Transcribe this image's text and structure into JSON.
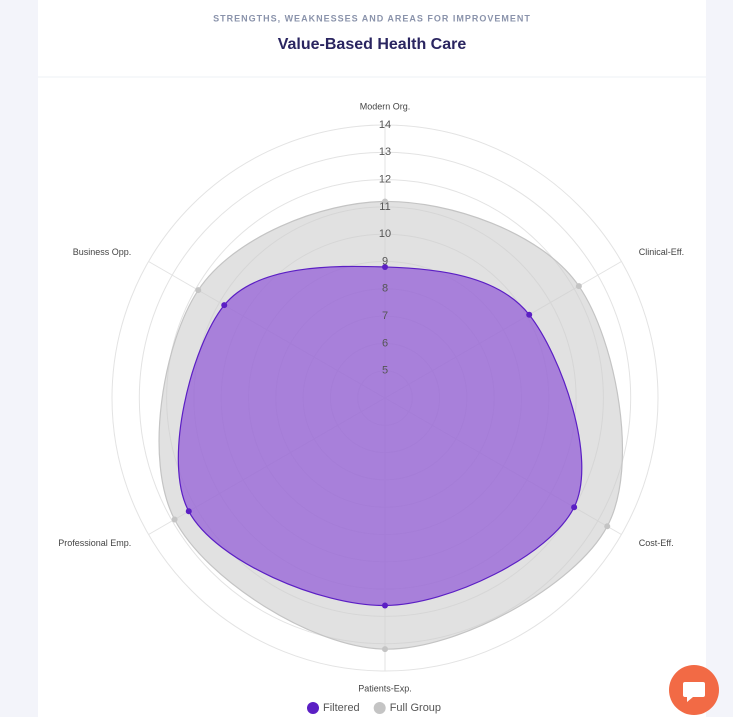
{
  "chart_data": {
    "type": "radar",
    "subtitle": "STRENGTHS, WEAKNESSES AND AREAS FOR IMPROVEMENT",
    "title": "Value-Based Health Care",
    "categories": [
      "Modern Org.",
      "Clinical-Eff.",
      "Cost-Eff.",
      "Patients-Exp.",
      "Professional Emp.",
      "Business Opp."
    ],
    "series": [
      {
        "name": "Filtered",
        "color": "#5b1fc4",
        "fill": "rgba(145,90,215,0.72)",
        "values": [
          8.8,
          10.1,
          12.0,
          11.6,
          12.3,
          10.8
        ]
      },
      {
        "name": "Full Group",
        "color": "#c4c4c4",
        "fill": "rgba(205,205,205,0.6)",
        "values": [
          11.2,
          12.2,
          13.4,
          13.2,
          12.9,
          11.9
        ]
      }
    ],
    "ylim": [
      4,
      14
    ],
    "yticks": [
      5,
      6,
      7,
      8,
      9,
      10,
      11,
      12,
      13,
      14
    ],
    "grid": true,
    "legend": "bottom"
  }
}
